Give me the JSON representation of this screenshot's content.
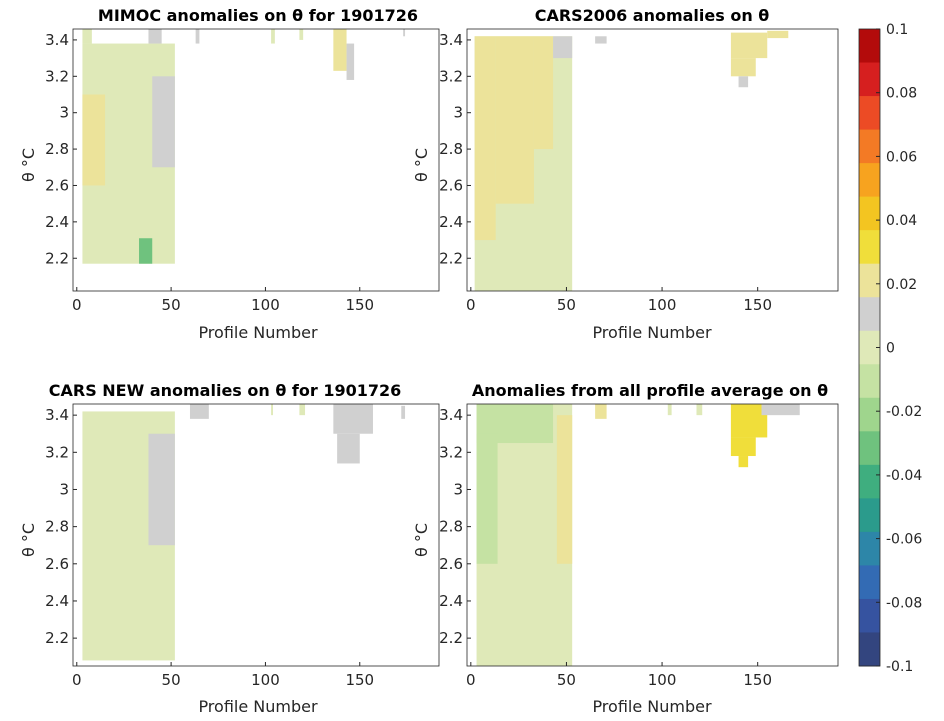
{
  "colorbar": {
    "min": -0.1,
    "max": 0.1,
    "ticks": [
      "0.1",
      "0.08",
      "0.06",
      "0.04",
      "0.02",
      "0",
      "-0.02",
      "-0.04",
      "-0.06",
      "-0.08",
      "-0.1"
    ],
    "neutral_band": [
      -0.01,
      0.01
    ],
    "colors_high_to_low": [
      "#b30b0b",
      "#d61f1f",
      "#ec4b25",
      "#f37a25",
      "#f7a31f",
      "#f3c521",
      "#f0de3a",
      "#ece39a",
      "#d0d0d0",
      "#dfe9b8",
      "#c5e2a3",
      "#9fd58d",
      "#6fc27e",
      "#3fae7f",
      "#2b9b8c",
      "#2d86a8",
      "#336bb4",
      "#3653a0",
      "#33457f"
    ]
  },
  "chart_data": [
    {
      "type": "heatmap",
      "title": "MIMOC anomalies on θ  for 1901726",
      "xlabel": "Profile Number",
      "ylabel": "θ °C",
      "xlim": [
        -2,
        192
      ],
      "ylim": [
        2.02,
        3.46
      ],
      "xticks": [
        "0",
        "50",
        "100",
        "150"
      ],
      "yticks": [
        "2.2",
        "2.4",
        "2.6",
        "2.8",
        "3",
        "3.2",
        "3.4"
      ],
      "cells": [
        {
          "x": [
            3,
            52
          ],
          "y": [
            2.17,
            3.38
          ],
          "v": 0.005
        },
        {
          "x": [
            3,
            8
          ],
          "y": [
            3.38,
            3.47
          ],
          "v": 0.005
        },
        {
          "x": [
            38,
            45
          ],
          "y": [
            3.38,
            3.47
          ],
          "v": 0.008
        },
        {
          "x": [
            33,
            40
          ],
          "y": [
            2.17,
            2.31
          ],
          "v": -0.03
        },
        {
          "x": [
            3,
            15
          ],
          "y": [
            2.6,
            3.1
          ],
          "v": 0.018
        },
        {
          "x": [
            40,
            52
          ],
          "y": [
            2.7,
            3.2
          ],
          "v": 0.013
        },
        {
          "x": [
            63,
            65
          ],
          "y": [
            3.38,
            3.46
          ],
          "v": 0.012
        },
        {
          "x": [
            103,
            105
          ],
          "y": [
            3.38,
            3.46
          ],
          "v": 0.005
        },
        {
          "x": [
            118,
            120
          ],
          "y": [
            3.4,
            3.46
          ],
          "v": 0.005
        },
        {
          "x": [
            136,
            143
          ],
          "y": [
            3.23,
            3.46
          ],
          "v": 0.018
        },
        {
          "x": [
            143,
            147
          ],
          "y": [
            3.18,
            3.38
          ],
          "v": 0.015
        },
        {
          "x": [
            173,
            174
          ],
          "y": [
            3.42,
            3.46
          ],
          "v": 0.013
        }
      ]
    },
    {
      "type": "heatmap",
      "title": "CARS2006 anomalies on θ",
      "xlabel": "Profile Number",
      "ylabel": "θ °C",
      "xlim": [
        -2,
        192
      ],
      "ylim": [
        2.02,
        3.46
      ],
      "xticks": [
        "0",
        "50",
        "100",
        "150"
      ],
      "yticks": [
        "2.2",
        "2.4",
        "2.6",
        "2.8",
        "3",
        "3.2",
        "3.4"
      ],
      "cells": [
        {
          "x": [
            2,
            53
          ],
          "y": [
            2.02,
            3.42
          ],
          "v": 0.005
        },
        {
          "x": [
            2,
            13
          ],
          "y": [
            2.3,
            3.42
          ],
          "v": 0.022
        },
        {
          "x": [
            13,
            33
          ],
          "y": [
            2.5,
            3.42
          ],
          "v": 0.019
        },
        {
          "x": [
            33,
            43
          ],
          "y": [
            2.8,
            3.42
          ],
          "v": 0.016
        },
        {
          "x": [
            43,
            53
          ],
          "y": [
            3.3,
            3.42
          ],
          "v": 0.013
        },
        {
          "x": [
            65,
            71
          ],
          "y": [
            3.38,
            3.42
          ],
          "v": 0.015
        },
        {
          "x": [
            136,
            155
          ],
          "y": [
            3.3,
            3.44
          ],
          "v": 0.025
        },
        {
          "x": [
            136,
            149
          ],
          "y": [
            3.2,
            3.3
          ],
          "v": 0.017
        },
        {
          "x": [
            140,
            145
          ],
          "y": [
            3.14,
            3.2
          ],
          "v": 0.013
        },
        {
          "x": [
            155,
            166
          ],
          "y": [
            3.41,
            3.45
          ],
          "v": 0.02
        }
      ]
    },
    {
      "type": "heatmap",
      "title": "CARS NEW anomalies on θ for 1901726",
      "xlabel": "Profile Number",
      "ylabel": "θ °C",
      "xlim": [
        -2,
        192
      ],
      "ylim": [
        2.05,
        3.46
      ],
      "xticks": [
        "0",
        "50",
        "100",
        "150"
      ],
      "yticks": [
        "2.2",
        "2.4",
        "2.6",
        "2.8",
        "3",
        "3.2",
        "3.4"
      ],
      "cells": [
        {
          "x": [
            3,
            52
          ],
          "y": [
            2.08,
            3.42
          ],
          "v": -0.005
        },
        {
          "x": [
            38,
            52
          ],
          "y": [
            2.7,
            3.3
          ],
          "v": 0.01
        },
        {
          "x": [
            60,
            70
          ],
          "y": [
            3.38,
            3.46
          ],
          "v": 0.013
        },
        {
          "x": [
            103,
            104
          ],
          "y": [
            3.4,
            3.46
          ],
          "v": 0.005
        },
        {
          "x": [
            118,
            121
          ],
          "y": [
            3.4,
            3.46
          ],
          "v": 0.005
        },
        {
          "x": [
            136,
            157
          ],
          "y": [
            3.3,
            3.46
          ],
          "v": 0.015
        },
        {
          "x": [
            138,
            150
          ],
          "y": [
            3.14,
            3.3
          ],
          "v": 0.012
        },
        {
          "x": [
            172,
            174
          ],
          "y": [
            3.38,
            3.45
          ],
          "v": 0.01
        }
      ]
    },
    {
      "type": "heatmap",
      "title": "Anomalies from all profile average on θ",
      "xlabel": "Profile Number",
      "ylabel": "θ °C",
      "xlim": [
        -2,
        192
      ],
      "ylim": [
        2.05,
        3.46
      ],
      "xticks": [
        "0",
        "50",
        "100",
        "150"
      ],
      "yticks": [
        "2.2",
        "2.4",
        "2.6",
        "2.8",
        "3",
        "3.2",
        "3.4"
      ],
      "cells": [
        {
          "x": [
            3,
            53
          ],
          "y": [
            2.05,
            3.46
          ],
          "v": 0.003
        },
        {
          "x": [
            3,
            43
          ],
          "y": [
            3.25,
            3.46
          ],
          "v": -0.012
        },
        {
          "x": [
            3,
            14
          ],
          "y": [
            2.6,
            3.3
          ],
          "v": -0.012
        },
        {
          "x": [
            45,
            53
          ],
          "y": [
            2.6,
            3.4
          ],
          "v": 0.017
        },
        {
          "x": [
            65,
            71
          ],
          "y": [
            3.38,
            3.46
          ],
          "v": 0.018
        },
        {
          "x": [
            103,
            105
          ],
          "y": [
            3.4,
            3.46
          ],
          "v": 0.005
        },
        {
          "x": [
            118,
            121
          ],
          "y": [
            3.4,
            3.46
          ],
          "v": 0.005
        },
        {
          "x": [
            136,
            155
          ],
          "y": [
            3.28,
            3.46
          ],
          "v": 0.028
        },
        {
          "x": [
            136,
            149
          ],
          "y": [
            3.18,
            3.28
          ],
          "v": 0.035
        },
        {
          "x": [
            140,
            145
          ],
          "y": [
            3.12,
            3.18
          ],
          "v": 0.033
        },
        {
          "x": [
            152,
            172
          ],
          "y": [
            3.4,
            3.46
          ],
          "v": 0.013
        }
      ]
    }
  ]
}
